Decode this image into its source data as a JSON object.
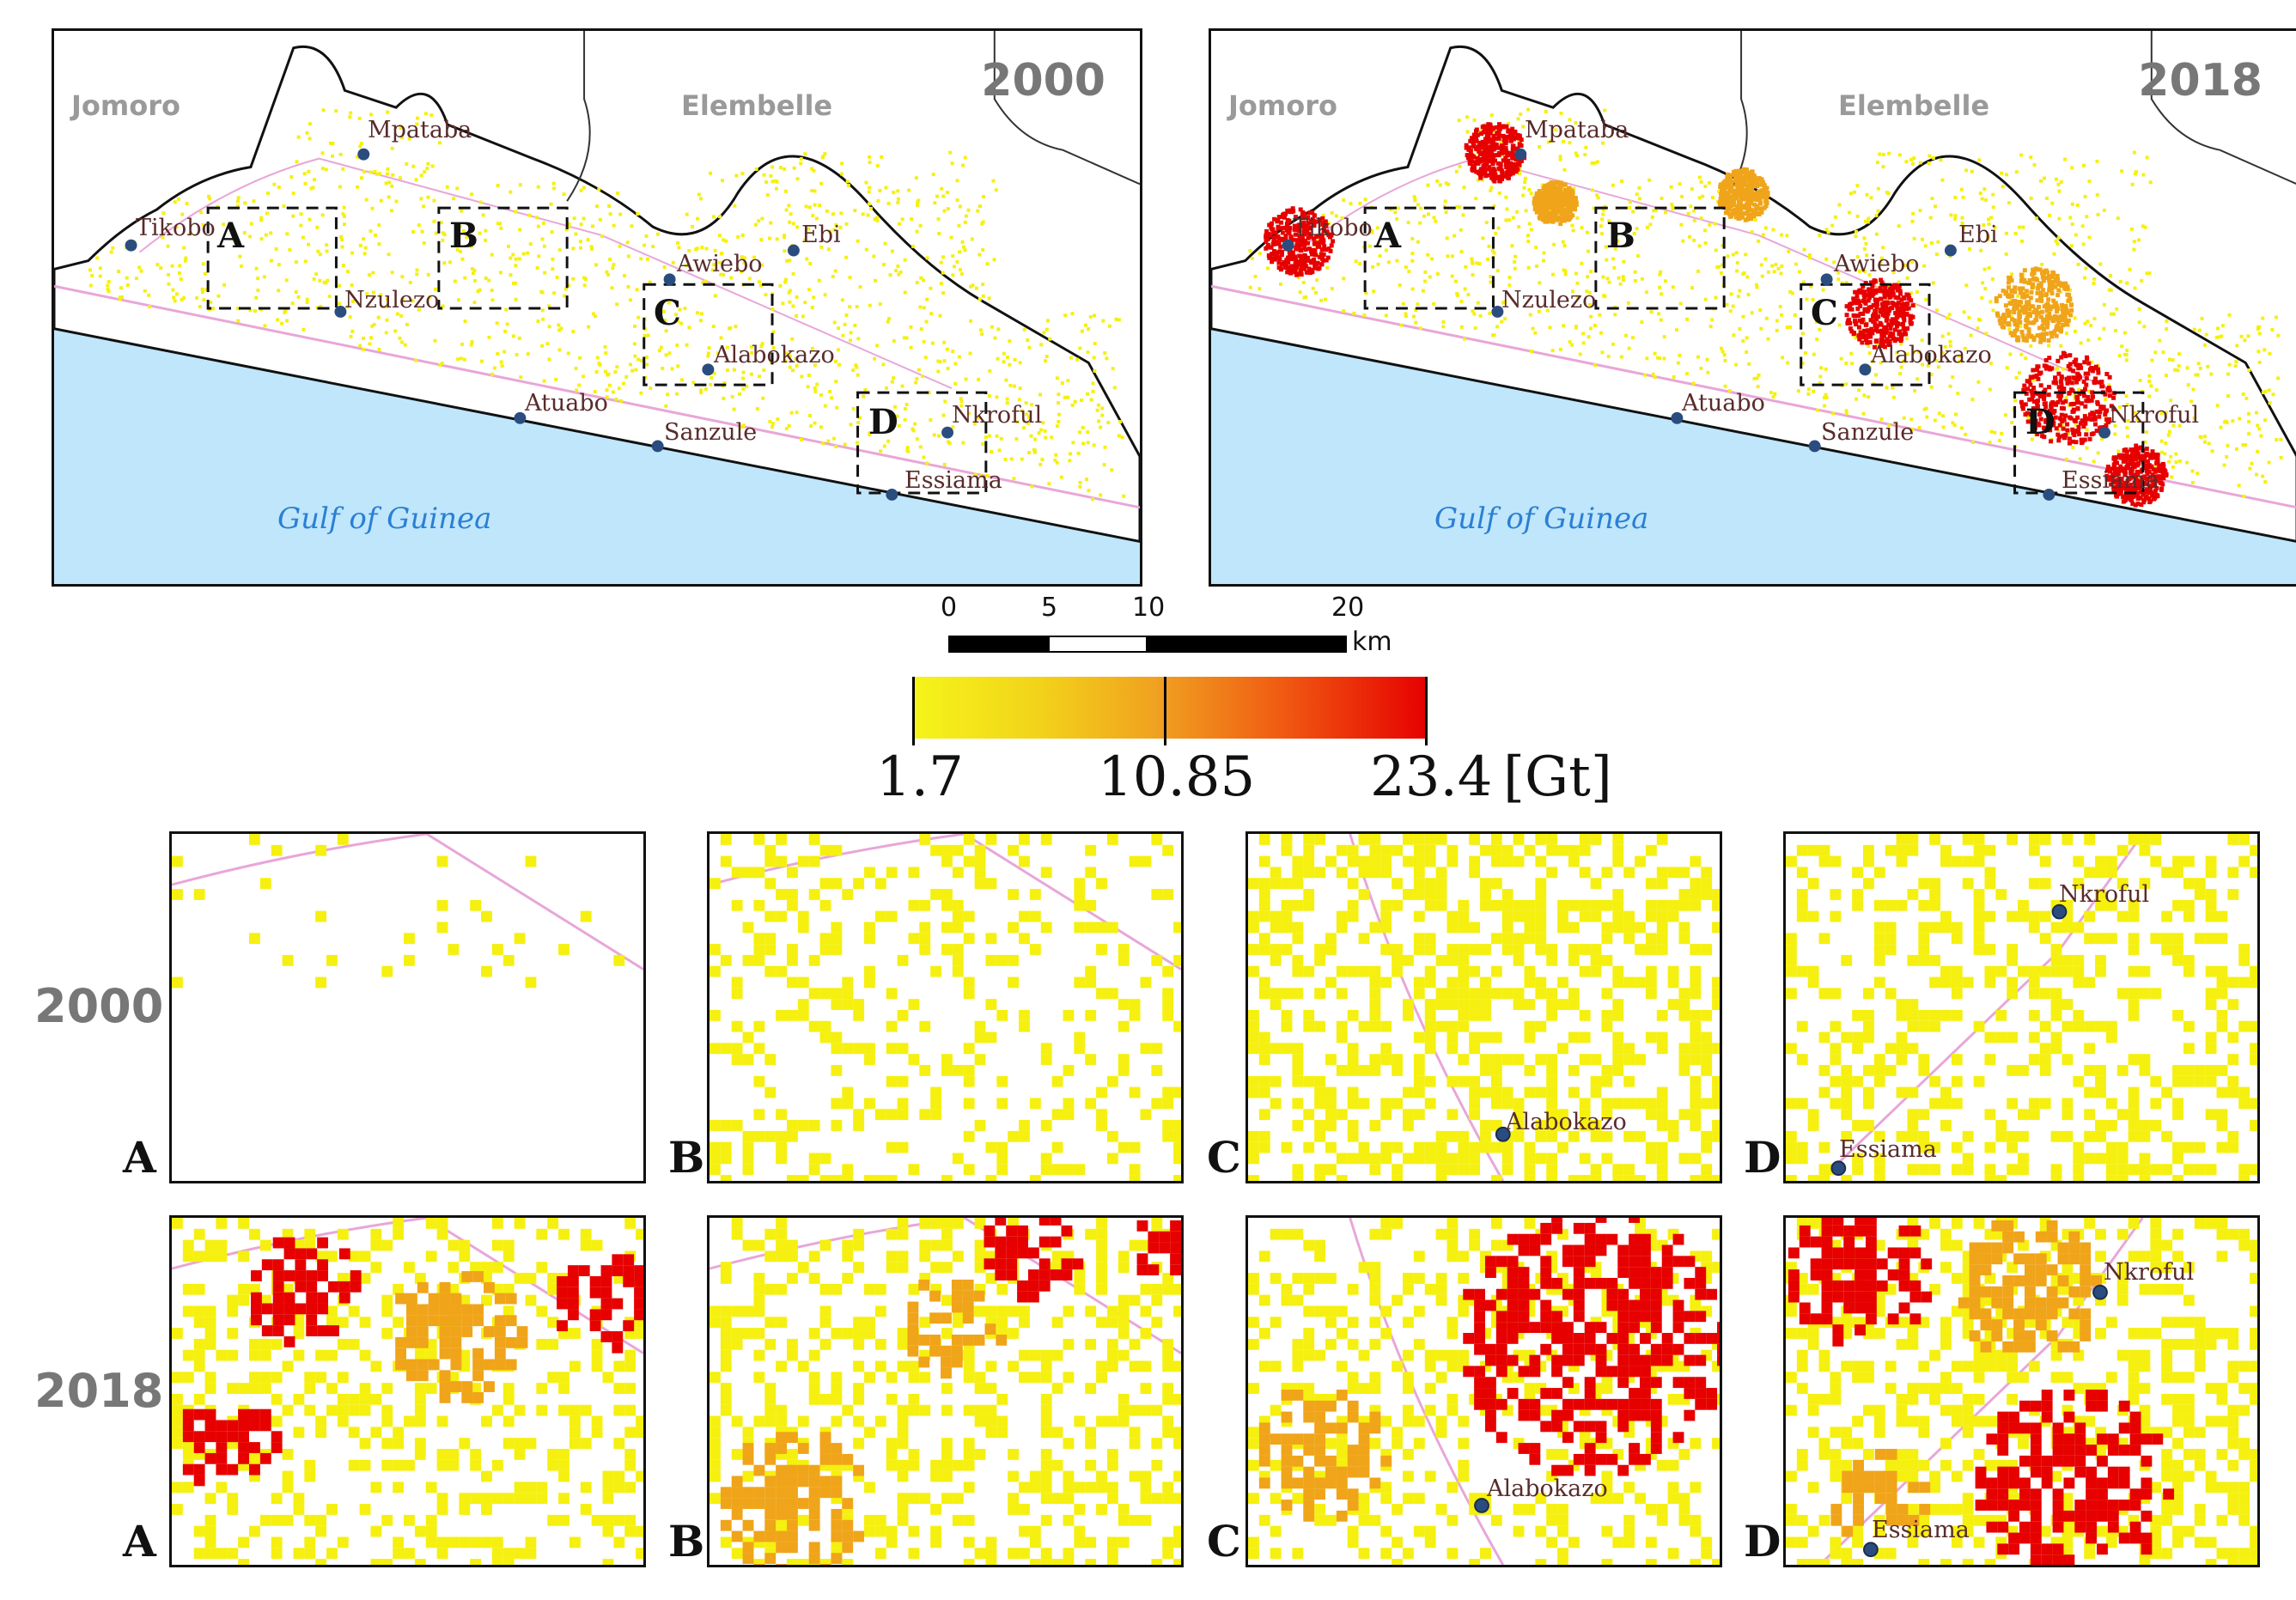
{
  "main_maps": [
    {
      "year": "2000",
      "districts": [
        "Jomoro",
        "Elembelle"
      ],
      "sea": "Gulf of Guinea",
      "towns": [
        "Mpataba",
        "Tikobo",
        "Nzulezo",
        "Awiebo",
        "Ebi",
        "Alabokazo",
        "Atuabo",
        "Sanzule",
        "Nkroful",
        "Essiama"
      ],
      "boxes": [
        "A",
        "B",
        "C",
        "D"
      ]
    },
    {
      "year": "2018",
      "districts": [
        "Jomoro",
        "Elembelle"
      ],
      "sea": "Gulf of Guinea",
      "towns": [
        "Mpataba",
        "Tikobo",
        "Nzulezo",
        "Awiebo",
        "Ebi",
        "Alabokazo",
        "Atuabo",
        "Sanzule",
        "Nkroful",
        "Essiama"
      ],
      "boxes": [
        "A",
        "B",
        "C",
        "D"
      ]
    }
  ],
  "scale_bar": {
    "ticks": [
      "0",
      "5",
      "10",
      "20"
    ],
    "unit": "km"
  },
  "legend": {
    "min": "1.7",
    "mid": "10.85",
    "max": "23.4",
    "unit": "[Gt]",
    "colors": [
      "#f5f51a",
      "#f0a020",
      "#f04010",
      "#e60000"
    ]
  },
  "zoom_rows": [
    {
      "label": "2000",
      "panels": [
        {
          "letter": "A",
          "towns": []
        },
        {
          "letter": "B",
          "towns": []
        },
        {
          "letter": "C",
          "towns": [
            "Alabokazo"
          ]
        },
        {
          "letter": "D",
          "towns": [
            "Nkroful",
            "Essiama"
          ]
        }
      ]
    },
    {
      "label": "2018",
      "panels": [
        {
          "letter": "A",
          "towns": []
        },
        {
          "letter": "B",
          "towns": []
        },
        {
          "letter": "C",
          "towns": [
            "Alabokazo"
          ]
        },
        {
          "letter": "D",
          "towns": [
            "Nkroful",
            "Essiama"
          ]
        }
      ]
    }
  ],
  "colors": {
    "sea": "#bfe6fb",
    "road": "#e8a6d8",
    "low": "#f5f00f",
    "mid": "#f0a41a",
    "high": "#e60000"
  }
}
